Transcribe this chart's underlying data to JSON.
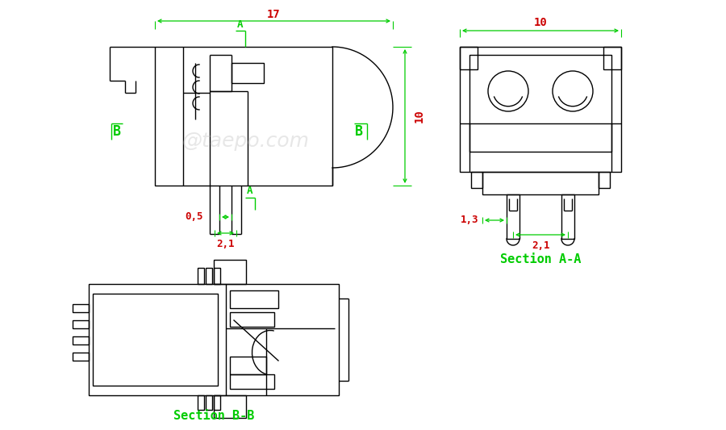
{
  "bg_color": "#ffffff",
  "line_color": "#000000",
  "dim_color": "#00cc00",
  "dim_text_color": "#cc0000",
  "watermark": "@taepo.com",
  "section_aa_label": "Section A-A",
  "section_bb_label": "Section B-B",
  "dim_17": "17",
  "dim_10_v": "10",
  "dim_10_h": "10",
  "dim_05": "0,5",
  "dim_21_v1": "2,1",
  "dim_21_v2": "2,1",
  "dim_13": "1,3",
  "label_A": "A",
  "label_B": "B"
}
